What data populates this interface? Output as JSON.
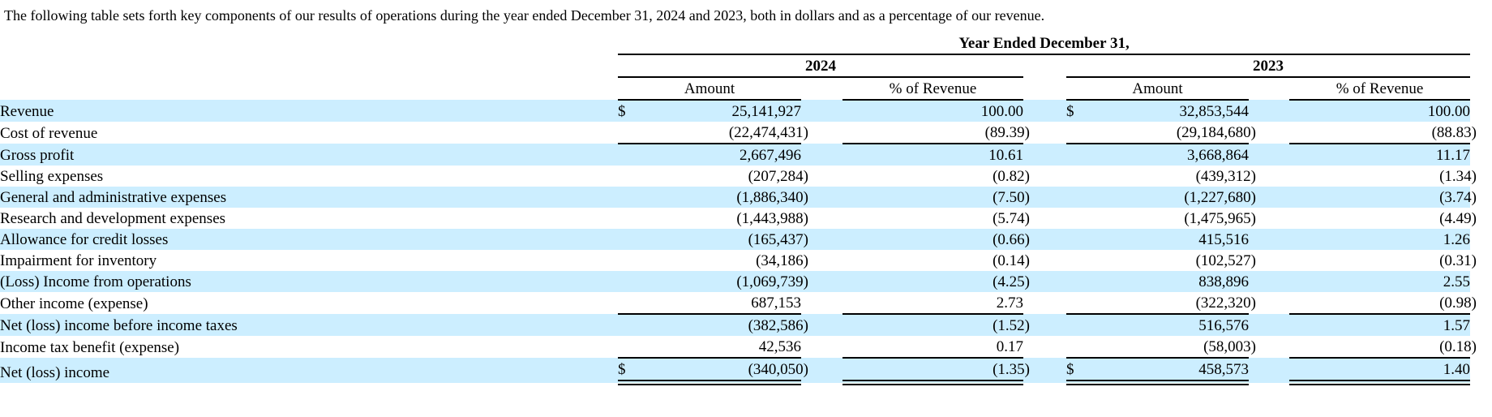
{
  "intro": "The following table sets forth key components of our results of operations during the year ended December 31, 2024 and 2023, both in dollars and as a percentage of our revenue.",
  "colors": {
    "row_highlight": "#cceeff",
    "text": "#000000",
    "rule": "#000000"
  },
  "table": {
    "title": "Year Ended December 31,",
    "year_groups": [
      "2024",
      "2023"
    ],
    "col_headers": [
      "Amount",
      "% of Revenue"
    ],
    "rows": [
      {
        "label": "Revenue",
        "d24": "$",
        "a24": "25,141,927",
        "p24": "100.00",
        "d23": "$",
        "a23": "32,853,544",
        "p23": "100.00",
        "highlight": true,
        "border": "none"
      },
      {
        "label": "Cost of revenue",
        "d24": "",
        "a24": "(22,474,431)",
        "p24": "(89.39)",
        "d23": "",
        "a23": "(29,184,680)",
        "p23": "(88.83)",
        "highlight": false,
        "border": "single"
      },
      {
        "label": "Gross profit",
        "d24": "",
        "a24": "2,667,496",
        "p24": "10.61",
        "d23": "",
        "a23": "3,668,864",
        "p23": "11.17",
        "highlight": true,
        "border": "none"
      },
      {
        "label": "Selling expenses",
        "d24": "",
        "a24": "(207,284)",
        "p24": "(0.82)",
        "d23": "",
        "a23": "(439,312)",
        "p23": "(1.34)",
        "highlight": false,
        "border": "none"
      },
      {
        "label": "General and administrative expenses",
        "d24": "",
        "a24": "(1,886,340)",
        "p24": "(7.50)",
        "d23": "",
        "a23": "(1,227,680)",
        "p23": "(3.74)",
        "highlight": true,
        "border": "none"
      },
      {
        "label": "Research and development expenses",
        "d24": "",
        "a24": "(1,443,988)",
        "p24": "(5.74)",
        "d23": "",
        "a23": "(1,475,965)",
        "p23": "(4.49)",
        "highlight": false,
        "border": "none"
      },
      {
        "label": "Allowance for credit losses",
        "d24": "",
        "a24": "(165,437)",
        "p24": "(0.66)",
        "d23": "",
        "a23": "415,516",
        "p23": "1.26",
        "highlight": true,
        "border": "none"
      },
      {
        "label": "Impairment for inventory",
        "d24": "",
        "a24": "(34,186)",
        "p24": "(0.14)",
        "d23": "",
        "a23": "(102,527)",
        "p23": "(0.31)",
        "highlight": false,
        "border": "none"
      },
      {
        "label": "(Loss) Income from operations",
        "d24": "",
        "a24": "(1,069,739)",
        "p24": "(4.25)",
        "d23": "",
        "a23": "838,896",
        "p23": "2.55",
        "highlight": true,
        "border": "none"
      },
      {
        "label": "Other income (expense)",
        "d24": "",
        "a24": "687,153",
        "p24": "2.73",
        "d23": "",
        "a23": "(322,320)",
        "p23": "(0.98)",
        "highlight": false,
        "border": "single"
      },
      {
        "label": "Net (loss) income before income taxes",
        "d24": "",
        "a24": "(382,586)",
        "p24": "(1.52)",
        "d23": "",
        "a23": "516,576",
        "p23": "1.57",
        "highlight": true,
        "border": "none"
      },
      {
        "label": "Income tax benefit (expense)",
        "d24": "",
        "a24": "42,536",
        "p24": "0.17",
        "d23": "",
        "a23": "(58,003)",
        "p23": "(0.18)",
        "highlight": false,
        "border": "single"
      },
      {
        "label": "Net (loss) income",
        "d24": "$",
        "a24": "(340,050)",
        "p24": "(1.35)",
        "d23": "$",
        "a23": "458,573",
        "p23": "1.40",
        "highlight": true,
        "border": "double"
      }
    ]
  }
}
